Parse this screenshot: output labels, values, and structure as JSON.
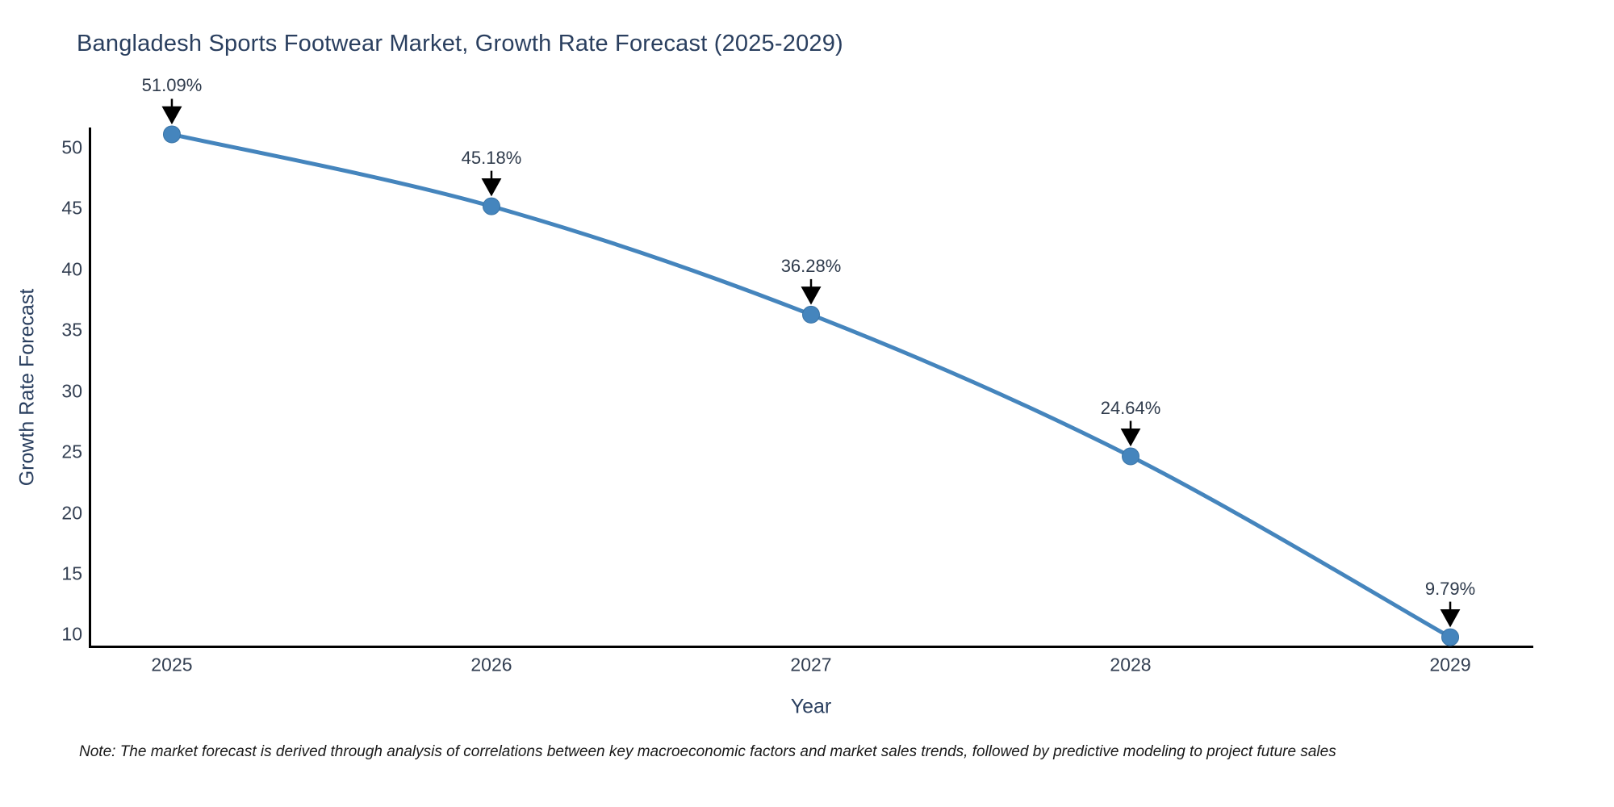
{
  "chart_data": {
    "type": "line",
    "line_shape": "spline",
    "title": "Bangladesh Sports Footwear Market, Growth Rate Forecast (2025-2029)",
    "xlabel": "Year",
    "ylabel": "Growth Rate Forecast",
    "x": [
      2025,
      2026,
      2027,
      2028,
      2029
    ],
    "series": [
      {
        "name": "Growth Rate Forecast",
        "values": [
          51.09,
          45.18,
          36.28,
          24.64,
          9.79
        ]
      }
    ],
    "point_labels": [
      "51.09%",
      "45.18%",
      "36.28%",
      "24.64%",
      "9.79%"
    ],
    "x_ticks": [
      2025,
      2026,
      2027,
      2028,
      2029
    ],
    "x_tick_labels": [
      "2025",
      "2026",
      "2027",
      "2028",
      "2029"
    ],
    "y_ticks": [
      10,
      15,
      20,
      25,
      30,
      35,
      40,
      45,
      50
    ],
    "y_tick_labels": [
      "10",
      "15",
      "20",
      "25",
      "30",
      "35",
      "40",
      "45",
      "50"
    ],
    "xlim": [
      2024.74,
      2029.26
    ],
    "ylim": [
      9.0,
      51.65
    ],
    "grid": false,
    "legend": "none"
  },
  "note": {
    "text": "Note: The market forecast is derived through analysis of correlations between key macroeconomic factors and market sales trends, followed by predictive modeling to project future sales"
  },
  "colors": {
    "line": "#4585bd",
    "marker": "#4585bd",
    "marker_edge": "#3a74a6",
    "axis_line": "#000000",
    "arrow": "#000000",
    "title_text": "#2a3f5f",
    "tick_text": "#333f52",
    "background": "#ffffff"
  }
}
